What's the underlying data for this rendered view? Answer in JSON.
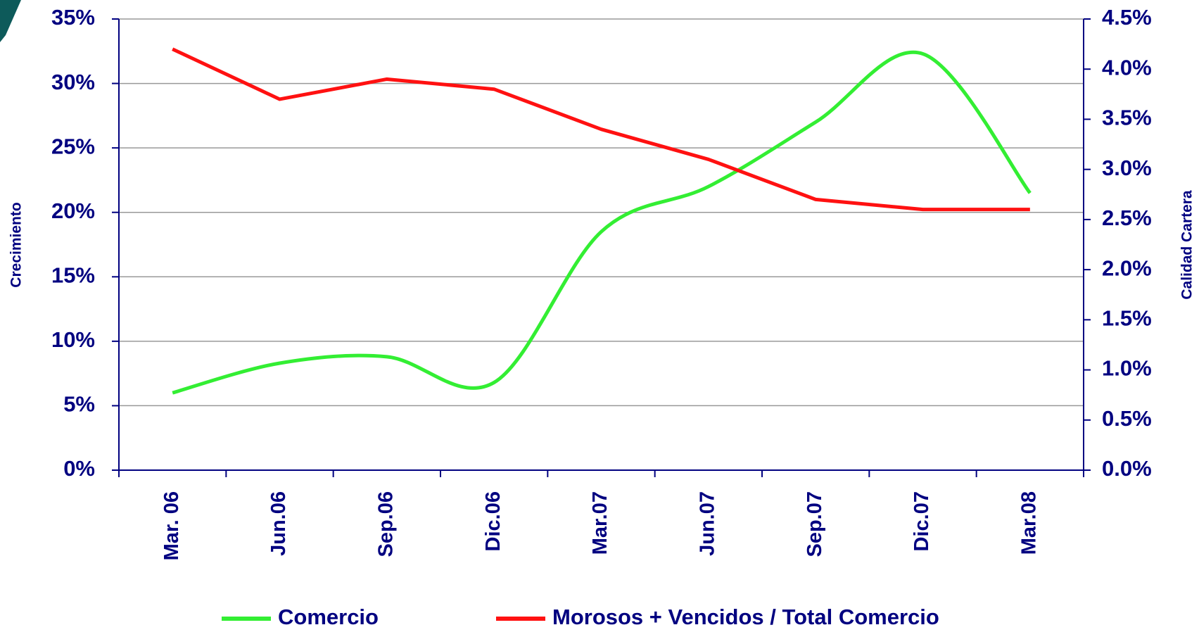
{
  "chart_data": {
    "type": "line",
    "ylabel": "Crecimiento",
    "y2label": "Calidad Cartera",
    "categories": [
      "Mar. 06",
      "Jun.06",
      "Sep.06",
      "Dic.06",
      "Mar.07",
      "Jun.07",
      "Sep.07",
      "Dic.07",
      "Mar.08"
    ],
    "series": [
      {
        "name": "Comercio",
        "color": "#33ee33",
        "values": [
          6.0,
          8.3,
          8.8,
          6.8,
          18.5,
          22.0,
          27.0,
          32.3,
          21.5
        ]
      },
      {
        "name": "Morosos + Vencidos / Total Comercio",
        "color": "#ff1111",
        "axis": "y2",
        "values": [
          4.2,
          3.7,
          3.9,
          3.8,
          3.4,
          3.1,
          2.7,
          2.6,
          2.6
        ]
      }
    ],
    "ylim": [
      0,
      35
    ],
    "yticks": [
      {
        "value": 0,
        "label": "0%"
      },
      {
        "value": 5,
        "label": "5%"
      },
      {
        "value": 10,
        "label": "10%"
      },
      {
        "value": 15,
        "label": "15%"
      },
      {
        "value": 20,
        "label": "20%"
      },
      {
        "value": 25,
        "label": "25%"
      },
      {
        "value": 30,
        "label": "30%"
      },
      {
        "value": 35,
        "label": "35%"
      }
    ],
    "y2lim": [
      0,
      4.5
    ],
    "y2ticks": [
      {
        "value": 0,
        "label": "0.0%"
      },
      {
        "value": 0.5,
        "label": "0.5%"
      },
      {
        "value": 1,
        "label": "1.0%"
      },
      {
        "value": 1.5,
        "label": "1.5%"
      },
      {
        "value": 2,
        "label": "2.0%"
      },
      {
        "value": 2.5,
        "label": "2.5%"
      },
      {
        "value": 3,
        "label": "3.0%"
      },
      {
        "value": 3.5,
        "label": "3.5%"
      },
      {
        "value": 4,
        "label": "4.0%"
      },
      {
        "value": 4.5,
        "label": "4.5%"
      }
    ],
    "grid": true
  }
}
